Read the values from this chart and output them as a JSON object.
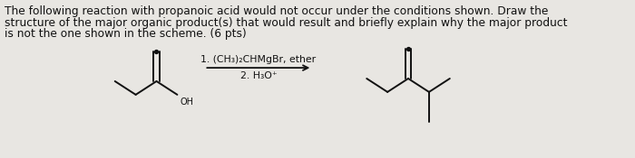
{
  "text_line1": "The following reaction with propanoic acid would not occur under the conditions shown. Draw the",
  "text_line2": "structure of the major organic product(s) that would result and briefly explain why the major product",
  "text_line3": "is not the one shown in the scheme. (6 pts)",
  "reagent_line1": "1. (CH₃)₂CHMgBr, ether",
  "reagent_line2": "2. H₃O⁺",
  "background_color": "#e8e6e2",
  "text_color": "#111111",
  "line_color": "#111111",
  "font_size_text": 8.8,
  "font_size_reagent": 7.8,
  "font_size_label": 7.0
}
